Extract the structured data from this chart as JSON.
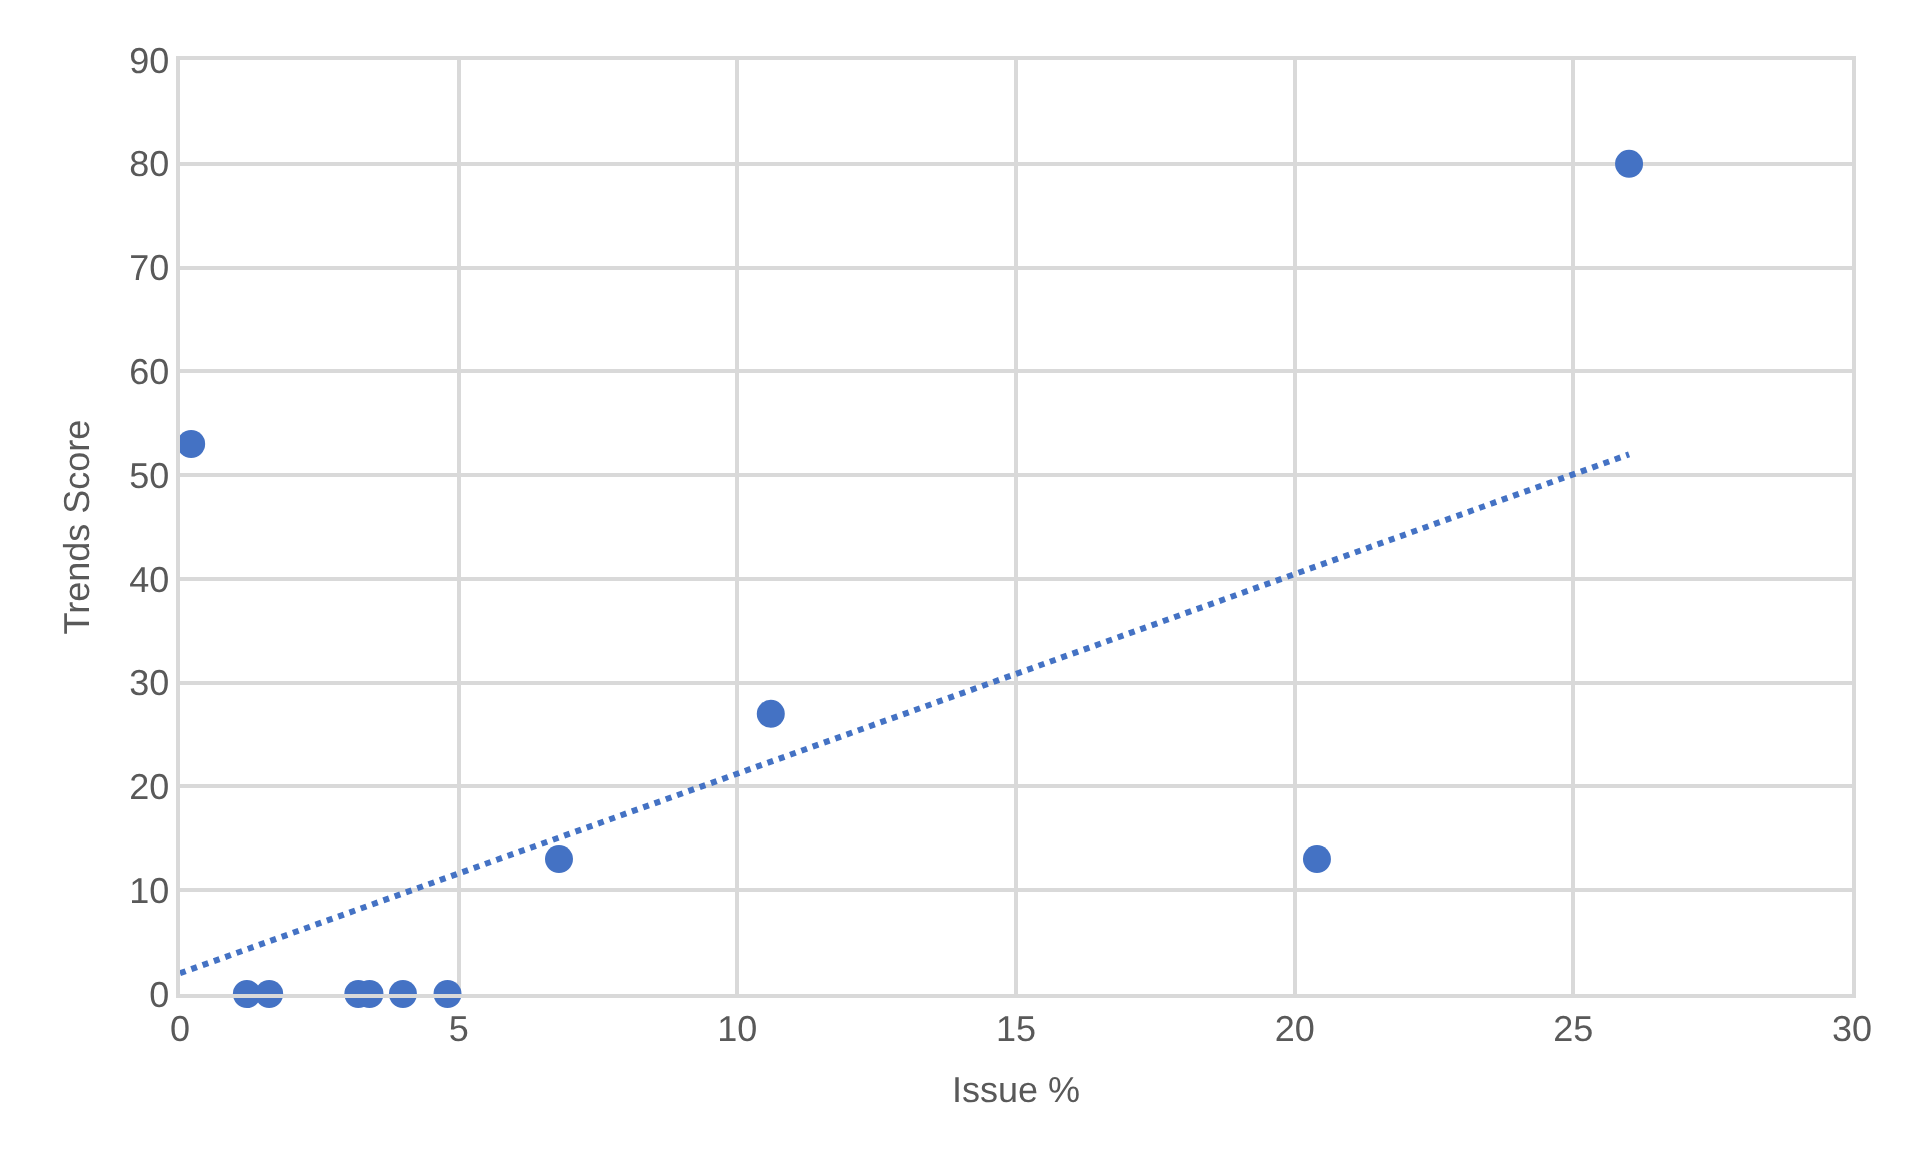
{
  "chart_data": {
    "type": "scatter",
    "xlabel": "Issue %",
    "ylabel": "Trends Score",
    "series": [
      {
        "color": "#4472c4",
        "marker": "circle",
        "x": [
          0.2,
          1.2,
          1.6,
          3.2,
          3.4,
          4.0,
          4.8,
          6.8,
          10.6,
          20.4,
          26.0
        ],
        "values": [
          53,
          0,
          0,
          0,
          0,
          0,
          0,
          13,
          27,
          13,
          80
        ]
      },
      {
        "type": "line",
        "color": "#4472c4",
        "line_style": "dotted",
        "marker": "none",
        "x": [
          0,
          26
        ],
        "values": [
          2,
          52
        ]
      }
    ],
    "xlim": [
      0,
      30
    ],
    "xticks": [
      0,
      5,
      10,
      15,
      20,
      25,
      30
    ],
    "ylim": [
      0,
      90
    ],
    "yticks": [
      0,
      10,
      20,
      30,
      40,
      50,
      60,
      70,
      80,
      90
    ],
    "grid": true,
    "legend": false
  }
}
